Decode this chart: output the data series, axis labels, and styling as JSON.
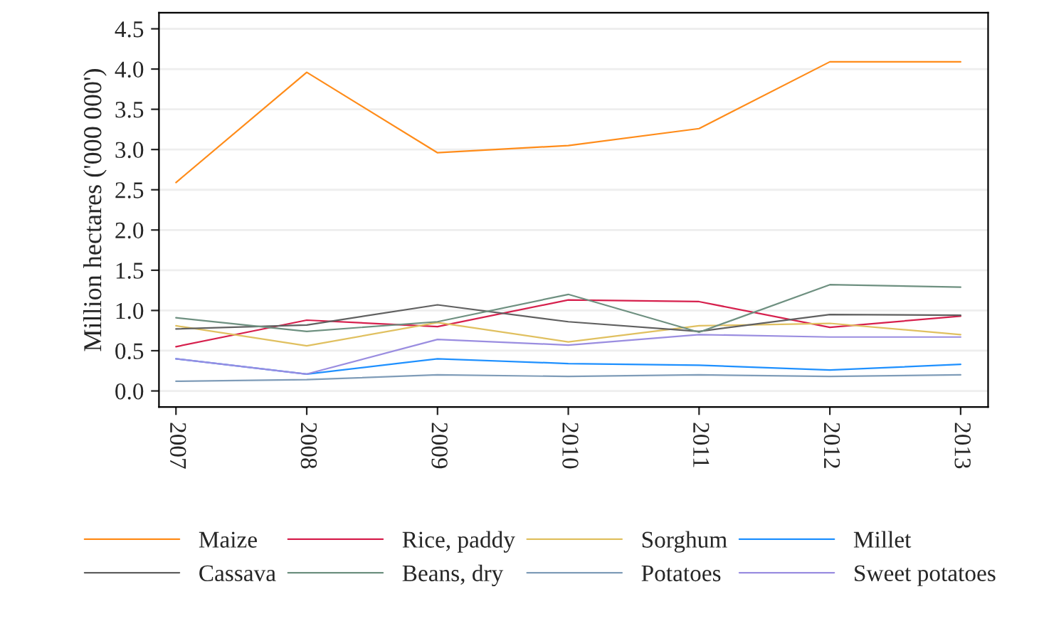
{
  "chart_data": {
    "type": "line",
    "ylabel": "Million hectares ('000 000')",
    "x": [
      2007,
      2008,
      2009,
      2010,
      2011,
      2012,
      2013
    ],
    "xlim": [
      2006.87,
      2013.21
    ],
    "xticks": [
      2007,
      2008,
      2009,
      2010,
      2011,
      2012,
      2013
    ],
    "ylim": [
      -0.2,
      4.7
    ],
    "yticks": [
      {
        "value": 0,
        "label": "0.0"
      },
      {
        "value": 0.5,
        "label": "0.5"
      },
      {
        "value": 1,
        "label": "1.0"
      },
      {
        "value": 1.5,
        "label": "1.5"
      },
      {
        "value": 2,
        "label": "2.0"
      },
      {
        "value": 2.5,
        "label": "2.5"
      },
      {
        "value": 3,
        "label": "3.0"
      },
      {
        "value": 3.5,
        "label": "3.5"
      },
      {
        "value": 4,
        "label": "4.0"
      },
      {
        "value": 4.5,
        "label": "4.5"
      }
    ],
    "grid": "y",
    "legend": "bottom",
    "line_style": "solid",
    "marker": "none",
    "series": [
      {
        "name": "Maize",
        "color": "#ff8c1a",
        "values": [
          2.59,
          3.96,
          2.96,
          3.05,
          3.26,
          4.09,
          4.09
        ]
      },
      {
        "name": "Rice, paddy",
        "color": "#d6204d",
        "values": [
          0.55,
          0.88,
          0.8,
          1.13,
          1.11,
          0.79,
          0.93
        ]
      },
      {
        "name": "Sorghum",
        "color": "#e0c060",
        "values": [
          0.81,
          0.56,
          0.85,
          0.61,
          0.81,
          0.84,
          0.7
        ]
      },
      {
        "name": "Millet",
        "color": "#1e90ff",
        "values": [
          0.4,
          0.21,
          0.4,
          0.34,
          0.32,
          0.26,
          0.33
        ]
      },
      {
        "name": "Cassava",
        "color": "#606060",
        "values": [
          0.77,
          0.82,
          1.07,
          0.86,
          0.74,
          0.95,
          0.94
        ]
      },
      {
        "name": "Beans, dry",
        "color": "#6e9080",
        "values": [
          0.91,
          0.74,
          0.86,
          1.2,
          0.73,
          1.32,
          1.29
        ]
      },
      {
        "name": "Potatoes",
        "color": "#7f9cb8",
        "values": [
          0.12,
          0.14,
          0.2,
          0.18,
          0.2,
          0.18,
          0.2
        ]
      },
      {
        "name": "Sweet potatoes",
        "color": "#9a8de0",
        "values": [
          0.4,
          0.21,
          0.64,
          0.57,
          0.7,
          0.67,
          0.67
        ]
      }
    ]
  }
}
